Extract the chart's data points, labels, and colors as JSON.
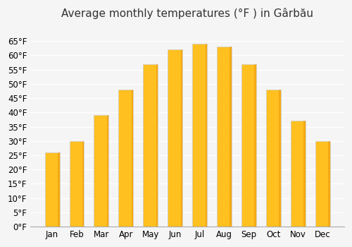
{
  "title": "Average monthly temperatures (°F ) in Gârbău",
  "months": [
    "Jan",
    "Feb",
    "Mar",
    "Apr",
    "May",
    "Jun",
    "Jul",
    "Aug",
    "Sep",
    "Oct",
    "Nov",
    "Dec"
  ],
  "values": [
    26,
    30,
    39,
    48,
    57,
    62,
    64,
    63,
    57,
    48,
    37,
    30
  ],
  "bar_color_top": "#FFA500",
  "bar_color_bottom": "#FFB733",
  "ylim": [
    0,
    70
  ],
  "yticks": [
    0,
    5,
    10,
    15,
    20,
    25,
    30,
    35,
    40,
    45,
    50,
    55,
    60,
    65
  ],
  "ytick_labels": [
    "0°F",
    "5°F",
    "10°F",
    "15°F",
    "20°F",
    "25°F",
    "30°F",
    "35°F",
    "40°F",
    "45°F",
    "50°F",
    "55°F",
    "60°F",
    "65°F"
  ],
  "bg_color": "#f5f5f5",
  "grid_color": "#ffffff",
  "bar_edge_color": "#cccccc",
  "title_fontsize": 11,
  "tick_fontsize": 8.5,
  "figsize": [
    5.0,
    3.5
  ],
  "dpi": 100
}
